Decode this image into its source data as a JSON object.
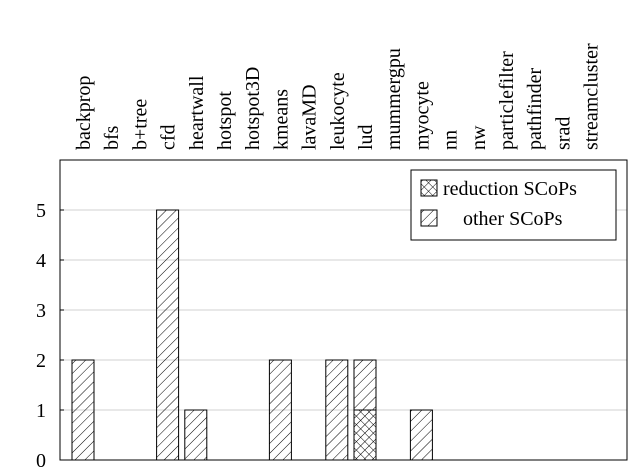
{
  "chart_data": {
    "type": "bar",
    "stacked": true,
    "categories": [
      "backprop",
      "bfs",
      "b+tree",
      "cfd",
      "heartwall",
      "hotspot",
      "hotspot3D",
      "kmeans",
      "lavaMD",
      "leukocyte",
      "lud",
      "mummergpu",
      "myocyte",
      "nn",
      "nw",
      "particlefilter",
      "pathfinder",
      "srad",
      "streamcluster"
    ],
    "series": [
      {
        "name": "reduction SCoPs",
        "pattern": "crosshatch",
        "values": [
          0,
          0,
          0,
          0,
          0,
          0,
          0,
          0,
          0,
          0,
          1,
          0,
          0,
          0,
          0,
          0,
          0,
          0,
          0
        ]
      },
      {
        "name": "other SCoPs",
        "pattern": "diagonal",
        "values": [
          2,
          0,
          0,
          5,
          1,
          0,
          0,
          2,
          0,
          2,
          1,
          0,
          1,
          0,
          0,
          0,
          0,
          0,
          0
        ]
      }
    ],
    "y_ticks": [
      "0",
      "1",
      "2",
      "3",
      "4",
      "5"
    ],
    "ylim": [
      0,
      6
    ],
    "xlabel": "",
    "ylabel": "",
    "title": "",
    "legend_position": "top-right",
    "grid": "horizontal",
    "colors": {
      "bar_stroke": "#000000",
      "grid": "#d0d0d0",
      "background": "#ffffff"
    }
  }
}
